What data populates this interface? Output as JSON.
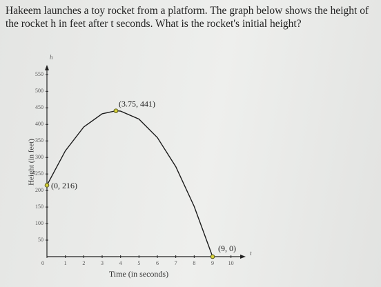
{
  "chart_data": {
    "type": "line",
    "title": "Hakeem launches a toy rocket from a platform. The graph below shows the height of the rocket h in feet after t seconds. What is the rocket's initial height?",
    "x_label": "Time (in seconds)",
    "y_label": "Height (in feet)",
    "x_axis_name": "t",
    "y_axis_name": "h",
    "x": [
      0,
      1,
      2,
      3,
      3.75,
      4,
      5,
      6,
      7,
      8,
      9
    ],
    "values": [
      216,
      320,
      392,
      432,
      441,
      440,
      416,
      360,
      272,
      152,
      0
    ],
    "color": "#1a1a1a",
    "xlim": [
      0,
      10.8
    ],
    "ylim": [
      0,
      580
    ],
    "xticks": [
      0,
      1,
      2,
      3,
      4,
      5,
      6,
      7,
      8,
      9,
      10
    ],
    "yticks": [
      50,
      100,
      150,
      200,
      250,
      300,
      350,
      400,
      450,
      500,
      550
    ],
    "annotations": [
      {
        "text": "(0, 216)",
        "x": 0,
        "y": 216
      },
      {
        "text": "(3.75, 441)",
        "x": 3.75,
        "y": 441
      },
      {
        "text": "(9, 0)",
        "x": 9,
        "y": 0
      }
    ]
  }
}
